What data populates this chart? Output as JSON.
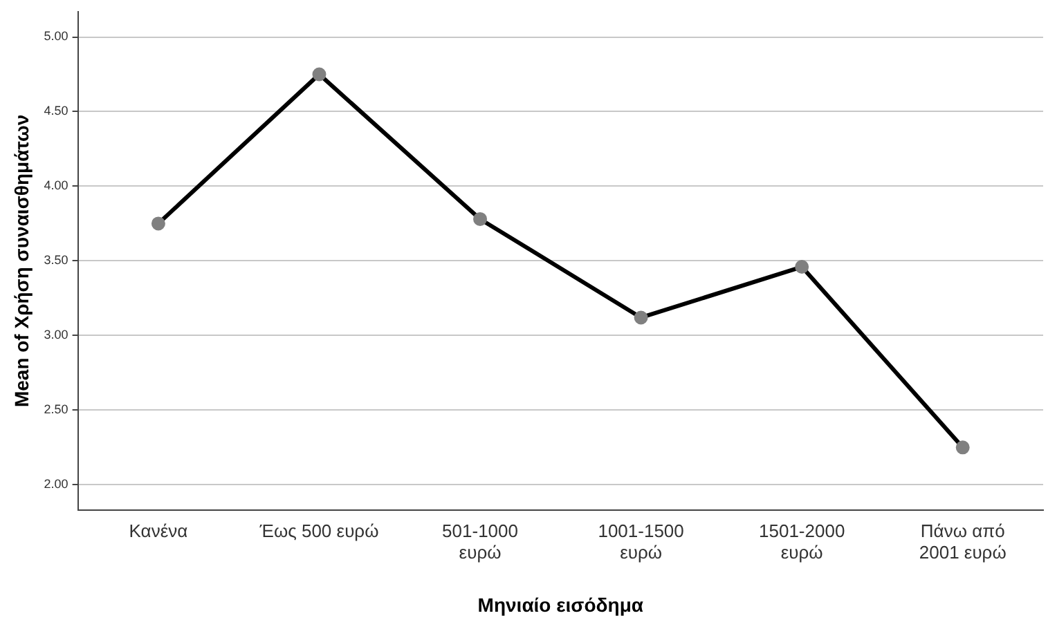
{
  "chart_data": {
    "type": "line",
    "xlabel": "Μηνιαίο εισόδημα",
    "ylabel": "Mean of Χρήση συναισθημάτων",
    "categories": [
      "Κανένα",
      "Έως 500 ευρώ",
      "501-1000\nευρώ",
      "1001-1500\nευρώ",
      "1501-2000\nευρώ",
      "Πάνω από\n2001 ευρώ"
    ],
    "series": [
      {
        "color": "#000000",
        "values": [
          3.75,
          4.75,
          3.78,
          3.12,
          3.46,
          2.25
        ]
      }
    ],
    "ylim": [
      1.83,
      5.17
    ],
    "yticks": [
      {
        "value": 2,
        "label": "2.00"
      },
      {
        "value": 2.5,
        "label": "2.50"
      },
      {
        "value": 3,
        "label": "3.00"
      },
      {
        "value": 3.5,
        "label": "3.50"
      },
      {
        "value": 4,
        "label": "4.00"
      },
      {
        "value": 4.5,
        "label": "4.50"
      },
      {
        "value": 5,
        "label": "5.00"
      }
    ],
    "grid": "y",
    "legend": false,
    "marker": "circle",
    "line_style": "solid"
  }
}
